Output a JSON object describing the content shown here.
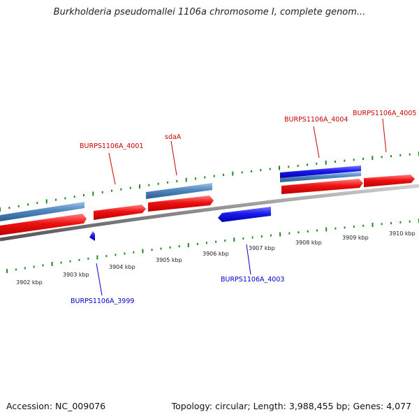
{
  "title": "Burkholderia pseudomallei 1106a chromosome I, complete genom...",
  "footer": {
    "accession": "Accession: NC_009076",
    "stats": "Topology: circular; Length: 3,988,455 bp; Genes: 4,077"
  },
  "ruler": {
    "labels": [
      "3902 kbp",
      "3903 kbp",
      "3904 kbp",
      "3905 kbp",
      "3906 kbp",
      "3907 kbp",
      "3908 kbp",
      "3909 kbp",
      "3910 kbp"
    ]
  },
  "gene_labels": {
    "forward": [
      "BURPS1106A_4001",
      "sdaA",
      "BURPS1106A_4004",
      "BURPS1106A_4005"
    ],
    "reverse": [
      "BURPS1106A_3999",
      "BURPS1106A_4003"
    ]
  },
  "colors": {
    "forward_gene": "#ee1111",
    "reverse_gene": "#1a1aee",
    "cds_steelblue": "#4f86bd",
    "backbone": "#888888",
    "tick": "#228B22",
    "forward_label": "#cc0000",
    "reverse_label": "#0000cc"
  }
}
